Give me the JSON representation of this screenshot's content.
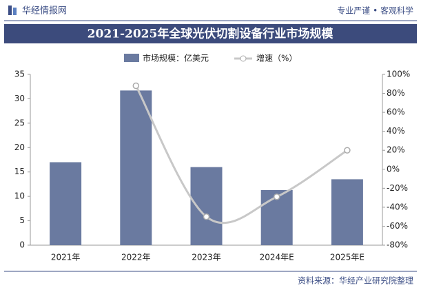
{
  "header": {
    "logo": "华经情报网",
    "slogan": "专业严谨 • 客观科学"
  },
  "chart_data": {
    "type": "bar_line",
    "title": "2021-2025年全球光伏切割设备行业市场规模",
    "categories": [
      "2021年",
      "2022年",
      "2023年",
      "2024年E",
      "2025年E"
    ],
    "series": [
      {
        "name": "市场规模：亿美元",
        "color": "#6a7aa0",
        "values": [
          17,
          31.7,
          16,
          11.3,
          13.5
        ]
      },
      {
        "name": "增速（%）",
        "color": "#c8c8c8",
        "axis": "y2",
        "values": [
          null,
          88,
          -50,
          -29,
          20
        ]
      }
    ],
    "ylim": [
      0,
      35
    ],
    "yticks": [
      0,
      5,
      10,
      15,
      20,
      25,
      30,
      35
    ],
    "y2lim": [
      -80,
      100
    ],
    "y2ticks": [
      {
        "value": -80,
        "label": "-80%"
      },
      {
        "value": -60,
        "label": "-60%"
      },
      {
        "value": -40,
        "label": "-40%"
      },
      {
        "value": -20,
        "label": "-20%"
      },
      {
        "value": 0,
        "label": "0%"
      },
      {
        "value": 20,
        "label": "20%"
      },
      {
        "value": 40,
        "label": "40%"
      },
      {
        "value": 60,
        "label": "60%"
      },
      {
        "value": 80,
        "label": "80%"
      },
      {
        "value": 100,
        "label": "100%"
      }
    ]
  },
  "footer": {
    "source": "资料来源：华经产业研究院整理"
  }
}
